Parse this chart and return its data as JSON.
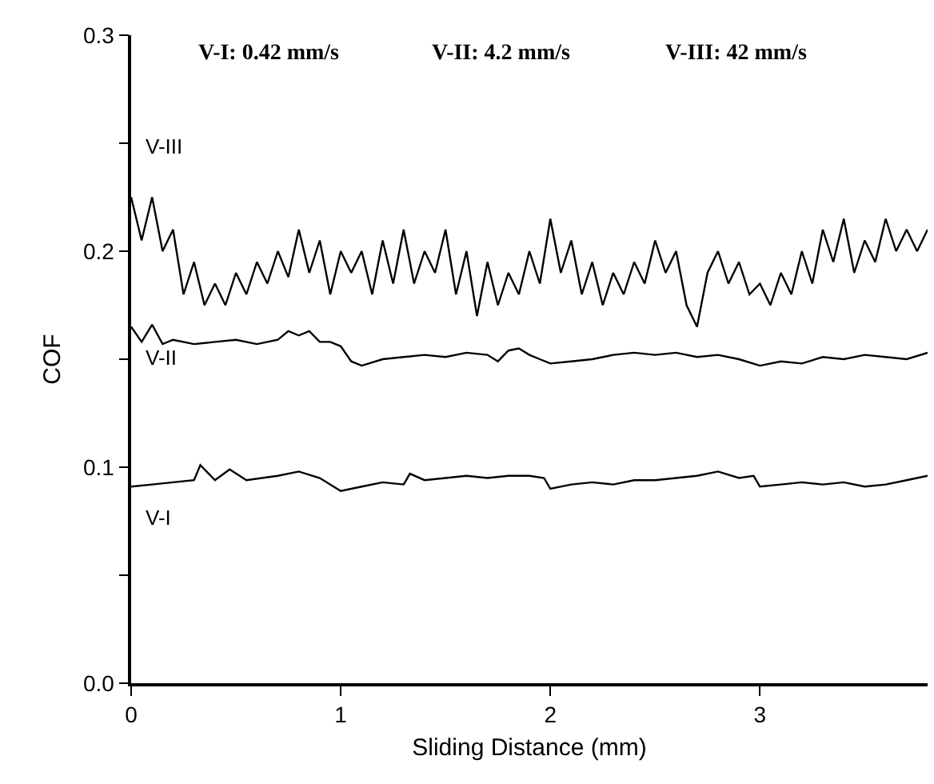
{
  "chart_data": {
    "type": "line",
    "xlabel": "Sliding Distance (mm)",
    "ylabel": "COF",
    "annotations": [
      "V-I: 0.42 mm/s",
      "V-II: 4.2 mm/s",
      "V-III: 42 mm/s"
    ],
    "xlim": [
      0,
      3.8
    ],
    "xticks": [
      0,
      1,
      2,
      3
    ],
    "ylim": [
      0,
      0.3
    ],
    "yticks": [
      {
        "value": 0,
        "label": "0.0"
      },
      {
        "value": 0.05,
        "label": null
      },
      0.1,
      {
        "value": 0.15,
        "label": null
      },
      0.2,
      {
        "value": 0.25,
        "label": null
      },
      0.3
    ],
    "legend": false,
    "marker": "none",
    "line_style": "solid",
    "series": [
      {
        "name": "V-I",
        "color": "#000000",
        "x": [
          0,
          0.1,
          0.2,
          0.3,
          0.33,
          0.4,
          0.47,
          0.55,
          0.7,
          0.8,
          0.9,
          1.0,
          1.1,
          1.2,
          1.3,
          1.33,
          1.4,
          1.5,
          1.6,
          1.7,
          1.8,
          1.9,
          1.97,
          2.0,
          2.1,
          2.2,
          2.3,
          2.4,
          2.5,
          2.6,
          2.7,
          2.8,
          2.9,
          2.97,
          3.0,
          3.1,
          3.2,
          3.3,
          3.4,
          3.5,
          3.6,
          3.7,
          3.8
        ],
        "values": [
          0.091,
          0.092,
          0.093,
          0.094,
          0.101,
          0.094,
          0.099,
          0.094,
          0.096,
          0.098,
          0.095,
          0.089,
          0.091,
          0.093,
          0.092,
          0.097,
          0.094,
          0.095,
          0.096,
          0.095,
          0.096,
          0.096,
          0.095,
          0.09,
          0.092,
          0.093,
          0.092,
          0.094,
          0.094,
          0.095,
          0.096,
          0.098,
          0.095,
          0.096,
          0.091,
          0.092,
          0.093,
          0.092,
          0.093,
          0.091,
          0.092,
          0.094,
          0.096
        ]
      },
      {
        "name": "V-II",
        "color": "#000000",
        "x": [
          0,
          0.05,
          0.1,
          0.15,
          0.2,
          0.3,
          0.4,
          0.5,
          0.6,
          0.7,
          0.75,
          0.8,
          0.85,
          0.9,
          0.95,
          1.0,
          1.05,
          1.1,
          1.2,
          1.3,
          1.4,
          1.5,
          1.6,
          1.7,
          1.75,
          1.8,
          1.85,
          1.9,
          1.95,
          2.0,
          2.1,
          2.2,
          2.3,
          2.4,
          2.5,
          2.6,
          2.7,
          2.8,
          2.9,
          3.0,
          3.1,
          3.2,
          3.3,
          3.4,
          3.5,
          3.6,
          3.7,
          3.8
        ],
        "values": [
          0.165,
          0.158,
          0.166,
          0.157,
          0.159,
          0.157,
          0.158,
          0.159,
          0.157,
          0.159,
          0.163,
          0.161,
          0.163,
          0.158,
          0.158,
          0.156,
          0.149,
          0.147,
          0.15,
          0.151,
          0.152,
          0.151,
          0.153,
          0.152,
          0.149,
          0.154,
          0.155,
          0.152,
          0.15,
          0.148,
          0.149,
          0.15,
          0.152,
          0.153,
          0.152,
          0.153,
          0.151,
          0.152,
          0.15,
          0.147,
          0.149,
          0.148,
          0.151,
          0.15,
          0.152,
          0.151,
          0.15,
          0.153
        ]
      },
      {
        "name": "V-III",
        "color": "#000000",
        "x": [
          0,
          0.05,
          0.1,
          0.15,
          0.2,
          0.25,
          0.3,
          0.35,
          0.4,
          0.45,
          0.5,
          0.55,
          0.6,
          0.65,
          0.7,
          0.75,
          0.8,
          0.85,
          0.9,
          0.95,
          1.0,
          1.05,
          1.1,
          1.15,
          1.2,
          1.25,
          1.3,
          1.35,
          1.4,
          1.45,
          1.5,
          1.55,
          1.6,
          1.65,
          1.7,
          1.75,
          1.8,
          1.85,
          1.9,
          1.95,
          2.0,
          2.05,
          2.1,
          2.15,
          2.2,
          2.25,
          2.3,
          2.35,
          2.4,
          2.45,
          2.5,
          2.55,
          2.6,
          2.65,
          2.7,
          2.75,
          2.8,
          2.85,
          2.9,
          2.95,
          3.0,
          3.05,
          3.1,
          3.15,
          3.2,
          3.25,
          3.3,
          3.35,
          3.4,
          3.45,
          3.5,
          3.55,
          3.6,
          3.65,
          3.7,
          3.75,
          3.8
        ],
        "values": [
          0.225,
          0.205,
          0.225,
          0.2,
          0.21,
          0.18,
          0.195,
          0.175,
          0.185,
          0.175,
          0.19,
          0.18,
          0.195,
          0.185,
          0.2,
          0.188,
          0.21,
          0.19,
          0.205,
          0.18,
          0.2,
          0.19,
          0.2,
          0.18,
          0.205,
          0.185,
          0.21,
          0.185,
          0.2,
          0.19,
          0.21,
          0.18,
          0.2,
          0.17,
          0.195,
          0.175,
          0.19,
          0.18,
          0.2,
          0.185,
          0.215,
          0.19,
          0.205,
          0.18,
          0.195,
          0.175,
          0.19,
          0.18,
          0.195,
          0.185,
          0.205,
          0.19,
          0.2,
          0.175,
          0.165,
          0.19,
          0.2,
          0.185,
          0.195,
          0.18,
          0.185,
          0.175,
          0.19,
          0.18,
          0.2,
          0.185,
          0.21,
          0.195,
          0.215,
          0.19,
          0.205,
          0.195,
          0.215,
          0.2,
          0.21,
          0.2,
          0.21
        ]
      }
    ]
  }
}
